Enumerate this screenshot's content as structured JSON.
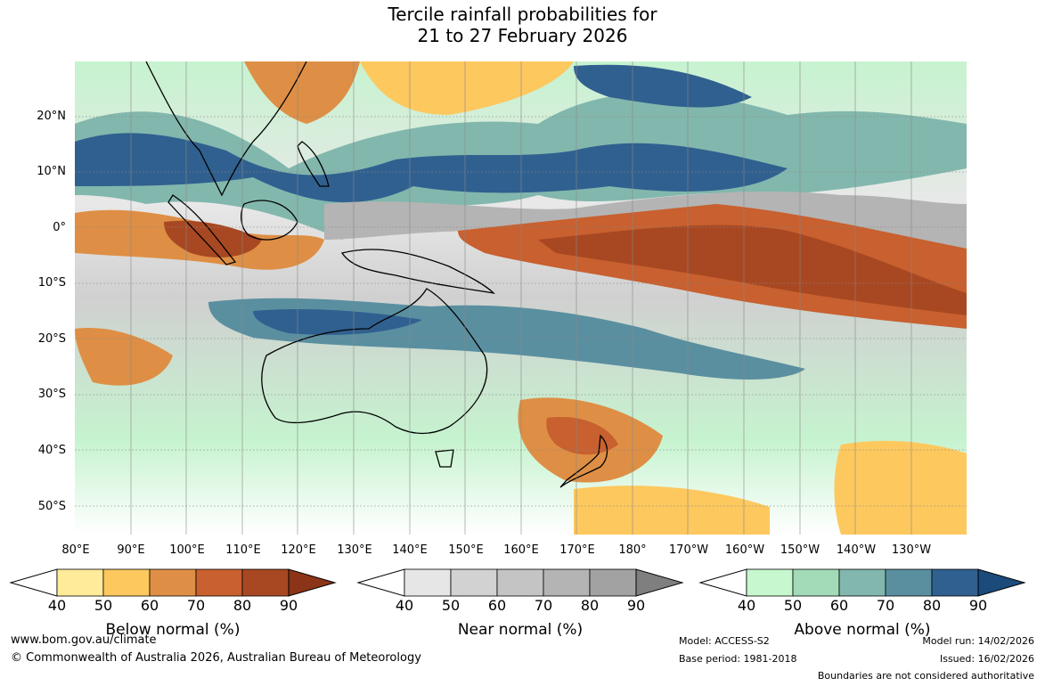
{
  "title_line1": "Tercile rainfall probabilities for",
  "title_line2": "21 to 27 February 2026",
  "lat_labels": [
    "20°N",
    "10°N",
    "0°",
    "10°S",
    "20°S",
    "30°S",
    "40°S",
    "50°S"
  ],
  "lon_labels": [
    "80°E",
    "90°E",
    "100°E",
    "110°E",
    "120°E",
    "130°E",
    "140°E",
    "150°E",
    "160°E",
    "170°E",
    "180°",
    "170°W",
    "160°W",
    "150°W",
    "140°W",
    "130°W"
  ],
  "colorbars": [
    {
      "title": "Below normal (%)",
      "colors": [
        "#ffeb99",
        "#fdc85e",
        "#de8f45",
        "#c8602f",
        "#a84822",
        "#8c3418"
      ]
    },
    {
      "title": "Near normal (%)",
      "colors": [
        "#e6e6e6",
        "#d2d2d2",
        "#c4c4c4",
        "#b4b4b4",
        "#a2a2a2",
        "#7f7f7f"
      ]
    },
    {
      "title": "Above normal (%)",
      "colors": [
        "#c6f7cf",
        "#a3dab8",
        "#82b7ad",
        "#5a8fa0",
        "#30608f",
        "#1a4b7a"
      ]
    }
  ],
  "colorbar_ticks": [
    "40",
    "50",
    "60",
    "70",
    "80",
    "90"
  ],
  "footer": {
    "website": "www.bom.gov.au/climate",
    "copyright": "© Commonwealth of Australia 2026, Australian Bureau of Meteorology",
    "model": "Model: ACCESS-S2",
    "base_period": "Base period: 1981-2018",
    "model_run": "Model run: 14/02/2026",
    "issued": "Issued: 16/02/2026",
    "disclaimer": "Boundaries are not considered authoritative"
  }
}
